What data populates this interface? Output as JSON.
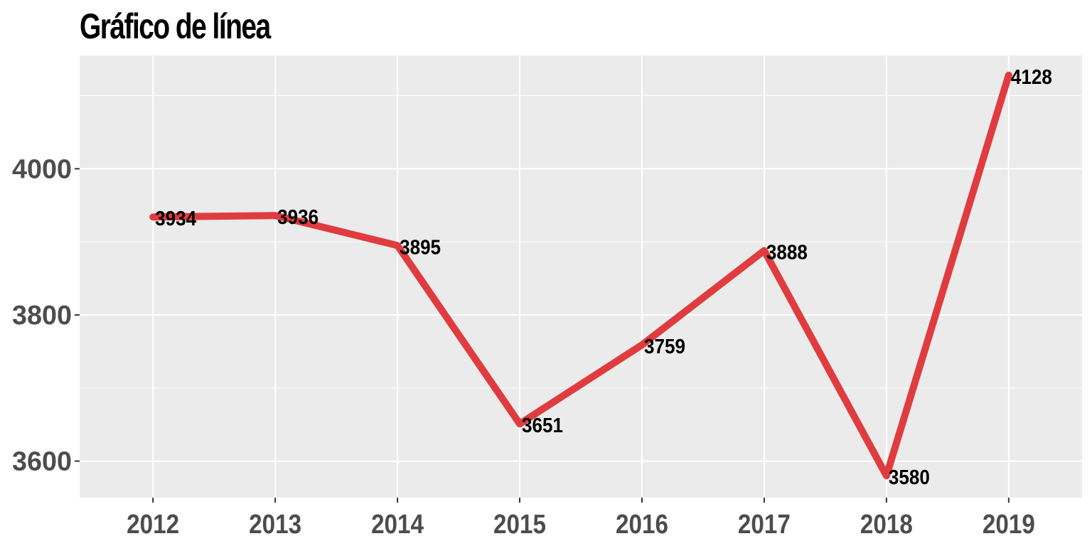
{
  "chart_data": {
    "type": "line",
    "title": "Gráfico de línea",
    "xlabel": "",
    "ylabel": "",
    "categories": [
      "2012",
      "2013",
      "2014",
      "2015",
      "2016",
      "2017",
      "2018",
      "2019"
    ],
    "series": [
      {
        "values": [
          3934,
          3936,
          3895,
          3651,
          3759,
          3888,
          3580,
          4128
        ],
        "color": "#e03c3f"
      }
    ],
    "data_labels": [
      "3934",
      "3936",
      "3895",
      "3651",
      "3759",
      "3888",
      "3580",
      "4128"
    ],
    "yticks": [
      3600,
      3800,
      4000
    ],
    "ylim": [
      3550,
      4155
    ],
    "grid": true,
    "legend": "none",
    "panel_background": "#ebebeb",
    "grid_color": "#ffffff"
  }
}
